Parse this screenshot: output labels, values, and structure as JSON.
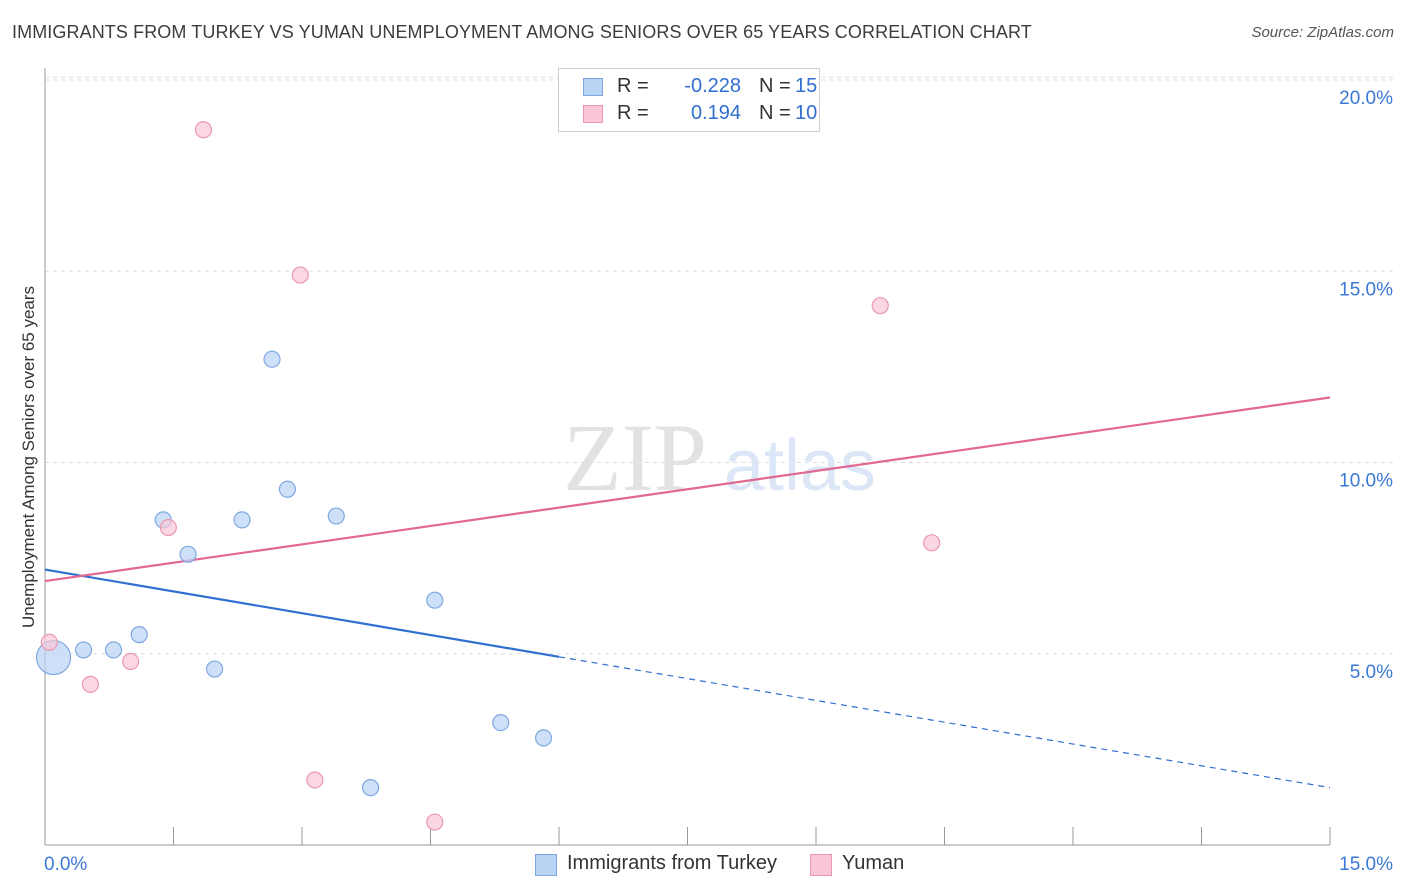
{
  "title": "IMMIGRANTS FROM TURKEY VS YUMAN UNEMPLOYMENT AMONG SENIORS OVER 65 YEARS CORRELATION CHART",
  "source": "Source: ZipAtlas.com",
  "watermark": {
    "zip": "ZIP",
    "atlas": "atlas"
  },
  "legend": {
    "series1": {
      "r_label": "R =",
      "r_value": "-0.228",
      "n_label": "N =",
      "n_value": "15"
    },
    "series2": {
      "r_label": "R =",
      "r_value": "0.194",
      "n_label": "N =",
      "n_value": "10"
    }
  },
  "colors": {
    "turkey_fill": "#b9d3f5",
    "turkey_stroke": "#7fa8e0",
    "turkey_line": "#2f6fd1",
    "yuman_fill": "#f8c6d5",
    "yuman_stroke": "#eb97b2",
    "yuman_line": "#e06891",
    "grid": "#dddddd",
    "tick_label": "#3a78d4"
  },
  "chart_data": {
    "type": "scatter",
    "title": "IMMIGRANTS FROM TURKEY VS YUMAN UNEMPLOYMENT AMONG SENIORS OVER 65 YEARS CORRELATION CHART",
    "xlabel": "",
    "ylabel": "Unemployment Among Seniors over 65 years",
    "xlim": [
      0,
      15
    ],
    "ylim": [
      0,
      20
    ],
    "x_tick_labels": [
      "0.0%",
      "15.0%"
    ],
    "y_ticks": [
      5,
      10,
      15,
      20
    ],
    "y_tick_labels": [
      "5.0%",
      "10.0%",
      "15.0%",
      "20.0%"
    ],
    "series": [
      {
        "name": "Immigrants from Turkey",
        "points": [
          {
            "x": 0.1,
            "y": 4.9,
            "big": true
          },
          {
            "x": 0.45,
            "y": 5.1
          },
          {
            "x": 0.8,
            "y": 5.1
          },
          {
            "x": 1.1,
            "y": 5.5
          },
          {
            "x": 1.38,
            "y": 8.5
          },
          {
            "x": 1.67,
            "y": 7.6
          },
          {
            "x": 1.98,
            "y": 4.6
          },
          {
            "x": 2.3,
            "y": 8.5
          },
          {
            "x": 2.65,
            "y": 12.7
          },
          {
            "x": 2.83,
            "y": 9.3
          },
          {
            "x": 3.4,
            "y": 8.6
          },
          {
            "x": 3.8,
            "y": 1.5
          },
          {
            "x": 4.55,
            "y": 6.4
          },
          {
            "x": 5.32,
            "y": 3.2
          },
          {
            "x": 5.82,
            "y": 2.8
          }
        ],
        "trend": {
          "x0": 0,
          "y0": 7.2,
          "x1": 15,
          "y1": 1.5,
          "solid_until_x": 6.0
        }
      },
      {
        "name": "Yuman",
        "points": [
          {
            "x": 0.05,
            "y": 5.3
          },
          {
            "x": 0.53,
            "y": 4.2
          },
          {
            "x": 1.0,
            "y": 4.8
          },
          {
            "x": 1.44,
            "y": 8.3
          },
          {
            "x": 1.85,
            "y": 18.7
          },
          {
            "x": 2.98,
            "y": 14.9
          },
          {
            "x": 3.15,
            "y": 1.7
          },
          {
            "x": 4.55,
            "y": 0.6
          },
          {
            "x": 9.75,
            "y": 14.1
          },
          {
            "x": 10.35,
            "y": 7.9
          }
        ],
        "trend": {
          "x0": 0,
          "y0": 6.9,
          "x1": 15,
          "y1": 11.7,
          "solid_until_x": 15
        }
      }
    ]
  }
}
